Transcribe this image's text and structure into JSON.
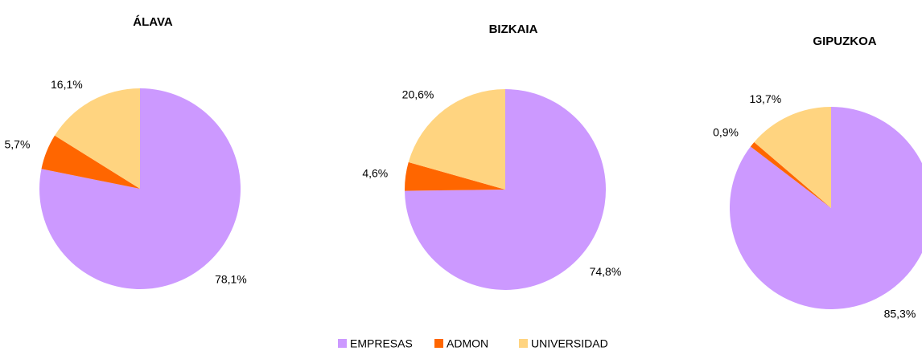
{
  "chart_data": [
    {
      "type": "pie",
      "title": "ÁLAVA",
      "categories": [
        "EMPRESAS",
        "ADMON",
        "UNIVERSIDAD"
      ],
      "values": [
        78.1,
        5.7,
        16.1
      ],
      "value_labels": [
        "78,1%",
        "5,7%",
        "16,1%"
      ],
      "colors": [
        "#cc99ff",
        "#ff6600",
        "#ffd480"
      ]
    },
    {
      "type": "pie",
      "title": "BIZKAIA",
      "categories": [
        "EMPRESAS",
        "ADMON",
        "UNIVERSIDAD"
      ],
      "values": [
        74.8,
        4.6,
        20.6
      ],
      "value_labels": [
        "74,8%",
        "4,6%",
        "20,6%"
      ],
      "colors": [
        "#cc99ff",
        "#ff6600",
        "#ffd480"
      ]
    },
    {
      "type": "pie",
      "title": "GIPUZKOA",
      "categories": [
        "EMPRESAS",
        "ADMON",
        "UNIVERSIDAD"
      ],
      "values": [
        85.3,
        0.9,
        13.7
      ],
      "value_labels": [
        "85,3%",
        "0,9%",
        "13,7%"
      ],
      "colors": [
        "#cc99ff",
        "#ff6600",
        "#ffd480"
      ]
    }
  ]
}
